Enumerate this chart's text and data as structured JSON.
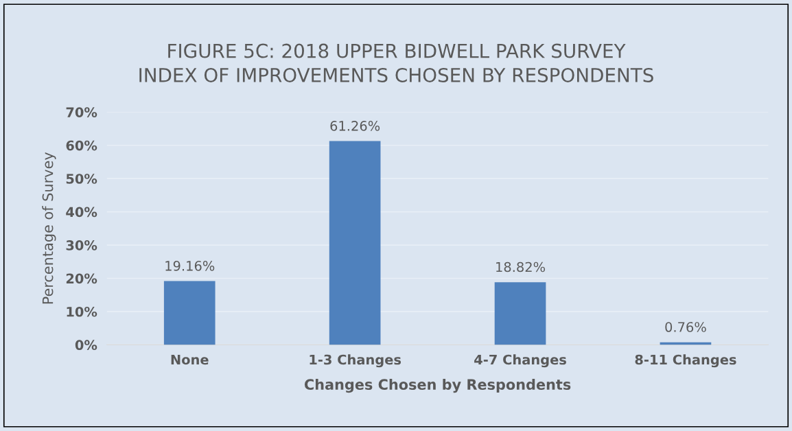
{
  "chart_data": {
    "type": "bar",
    "title": "FIGURE 5C: 2018 UPPER BIDWELL PARK SURVEY\nINDEX OF IMPROVEMENTS CHOSEN BY RESPONDENTS",
    "xlabel": "Changes Chosen by Respondents",
    "ylabel": "Percentage of Survey",
    "categories": [
      "None",
      "1-3 Changes",
      "4-7 Changes",
      "8-11 Changes"
    ],
    "values": [
      19.16,
      61.26,
      18.82,
      0.76
    ],
    "color": "#4f81bd",
    "value_labels": [
      "19.16%",
      "61.26%",
      "18.82%",
      "0.76%"
    ],
    "ylim": [
      0,
      70
    ],
    "yticks": [
      {
        "value": 0,
        "label": "0%"
      },
      {
        "value": 10,
        "label": "10%"
      },
      {
        "value": 20,
        "label": "20%"
      },
      {
        "value": 30,
        "label": "30%"
      },
      {
        "value": 40,
        "label": "40%"
      },
      {
        "value": 50,
        "label": "50%"
      },
      {
        "value": 60,
        "label": "60%"
      },
      {
        "value": 70,
        "label": "70%"
      }
    ],
    "grid": "y",
    "legend": false
  }
}
